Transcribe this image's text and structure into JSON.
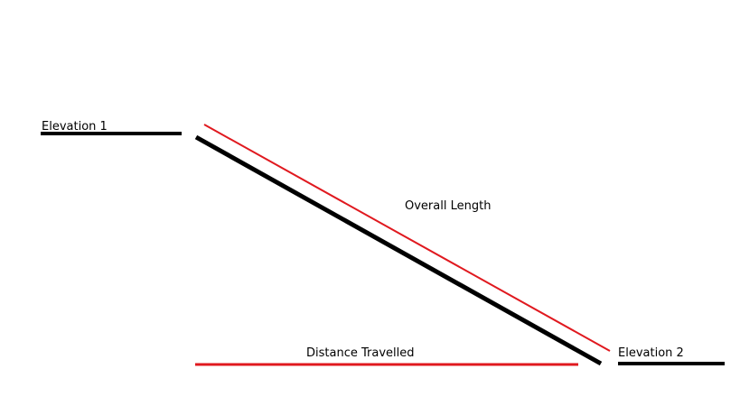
{
  "labels": {
    "elevation_1": "Elevation 1",
    "overall_length": "Overall Length",
    "distance_travelled": "Distance Travelled",
    "elevation_2": "Elevation 2"
  },
  "colors": {
    "ground": "#000000",
    "measure": "#e0191f"
  }
}
